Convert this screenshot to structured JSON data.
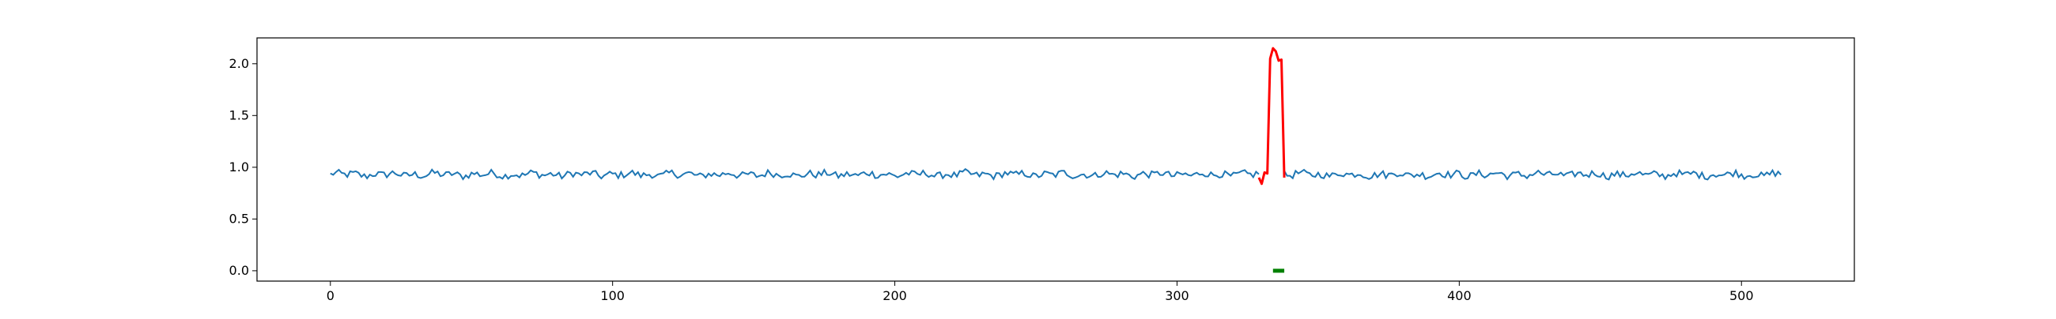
{
  "chart_data": {
    "type": "line",
    "title": "",
    "xlabel": "",
    "ylabel": "",
    "xlim": [
      -26,
      540
    ],
    "ylim": [
      -0.1,
      2.25
    ],
    "grid": false,
    "xticks": [
      0,
      100,
      200,
      300,
      400,
      500
    ],
    "xtick_labels": [
      "0",
      "100",
      "200",
      "300",
      "400",
      "500"
    ],
    "yticks": [
      0.0,
      0.5,
      1.0,
      1.5,
      2.0
    ],
    "ytick_labels": [
      "0.0",
      "0.5",
      "1.0",
      "1.5",
      "2.0"
    ],
    "series_colors": {
      "signal": "#1f77b4",
      "anomaly": "#ff0000",
      "marker": "#008000"
    },
    "signal_n": 515,
    "signal_mean": 0.93,
    "signal_amplitude": 0.035,
    "anomaly_segment": {
      "x": [
        329,
        330,
        331,
        332,
        333,
        334,
        335,
        336,
        337,
        338
      ],
      "y": [
        0.9,
        0.84,
        0.95,
        0.94,
        2.05,
        2.15,
        2.12,
        2.03,
        2.04,
        0.9
      ]
    },
    "anomaly_marker": {
      "x_start": 334,
      "x_end": 338,
      "y": 0.0
    }
  }
}
